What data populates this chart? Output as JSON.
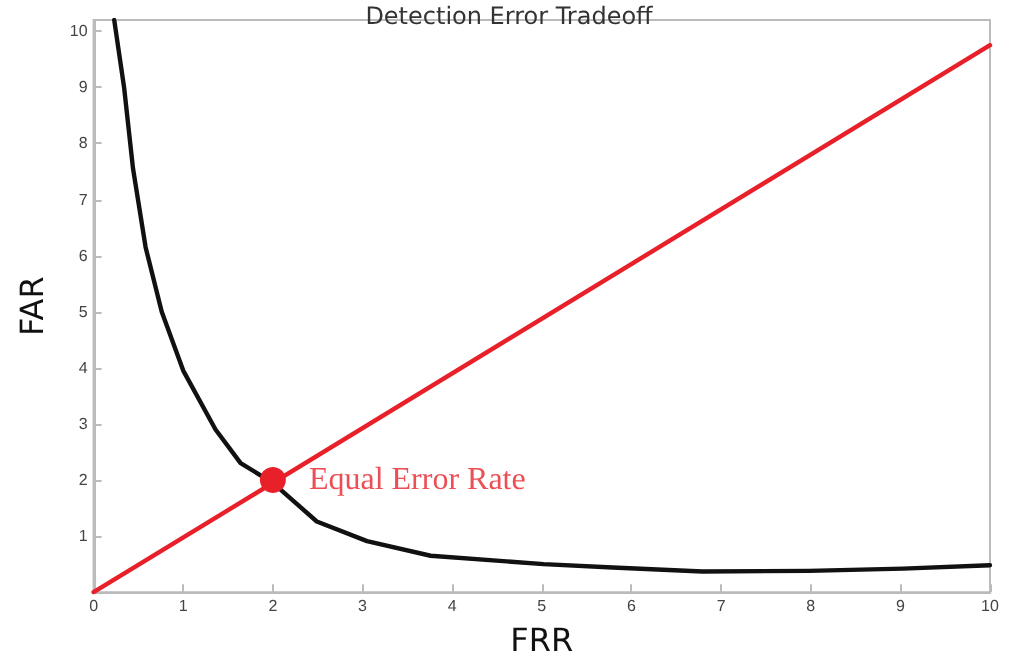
{
  "chart_data": {
    "type": "line",
    "title": "Detection Error Tradeoff",
    "xlabel": "FRR",
    "ylabel": "FAR",
    "xlim": [
      0,
      10
    ],
    "ylim": [
      0,
      10.2
    ],
    "xticks": [
      0,
      1,
      2,
      3,
      4,
      5,
      6,
      7,
      8,
      9,
      10
    ],
    "yticks": [
      {
        "value": 0,
        "label": null
      },
      1,
      2,
      3,
      4,
      5,
      6,
      7,
      8,
      9,
      10
    ],
    "grid": false,
    "marker": "none",
    "line_style": "solid",
    "series": [
      {
        "color": "#e8202a",
        "x": [
          0,
          10
        ],
        "values": [
          0,
          9.75
        ]
      },
      {
        "color": "#111111",
        "x": [
          0.23,
          0.34,
          0.44,
          0.58,
          0.76,
          1.0,
          1.36,
          1.64,
          2.0,
          2.49,
          3.05,
          3.76,
          5.02,
          5.79,
          6.79,
          7.98,
          9.03,
          10
        ],
        "values": [
          10.2,
          9.0,
          7.55,
          6.15,
          5.0,
          3.95,
          2.9,
          2.3,
          1.95,
          1.26,
          0.91,
          0.65,
          0.5,
          0.44,
          0.37,
          0.38,
          0.42,
          0.48
        ]
      },
      {
        "type": "scatter",
        "marker": "circle",
        "color": "#e8202a",
        "x": [
          2
        ],
        "values": [
          2
        ]
      }
    ],
    "annotations": [
      {
        "text": "Equal Error Rate",
        "x": 2,
        "y": 2
      }
    ]
  }
}
